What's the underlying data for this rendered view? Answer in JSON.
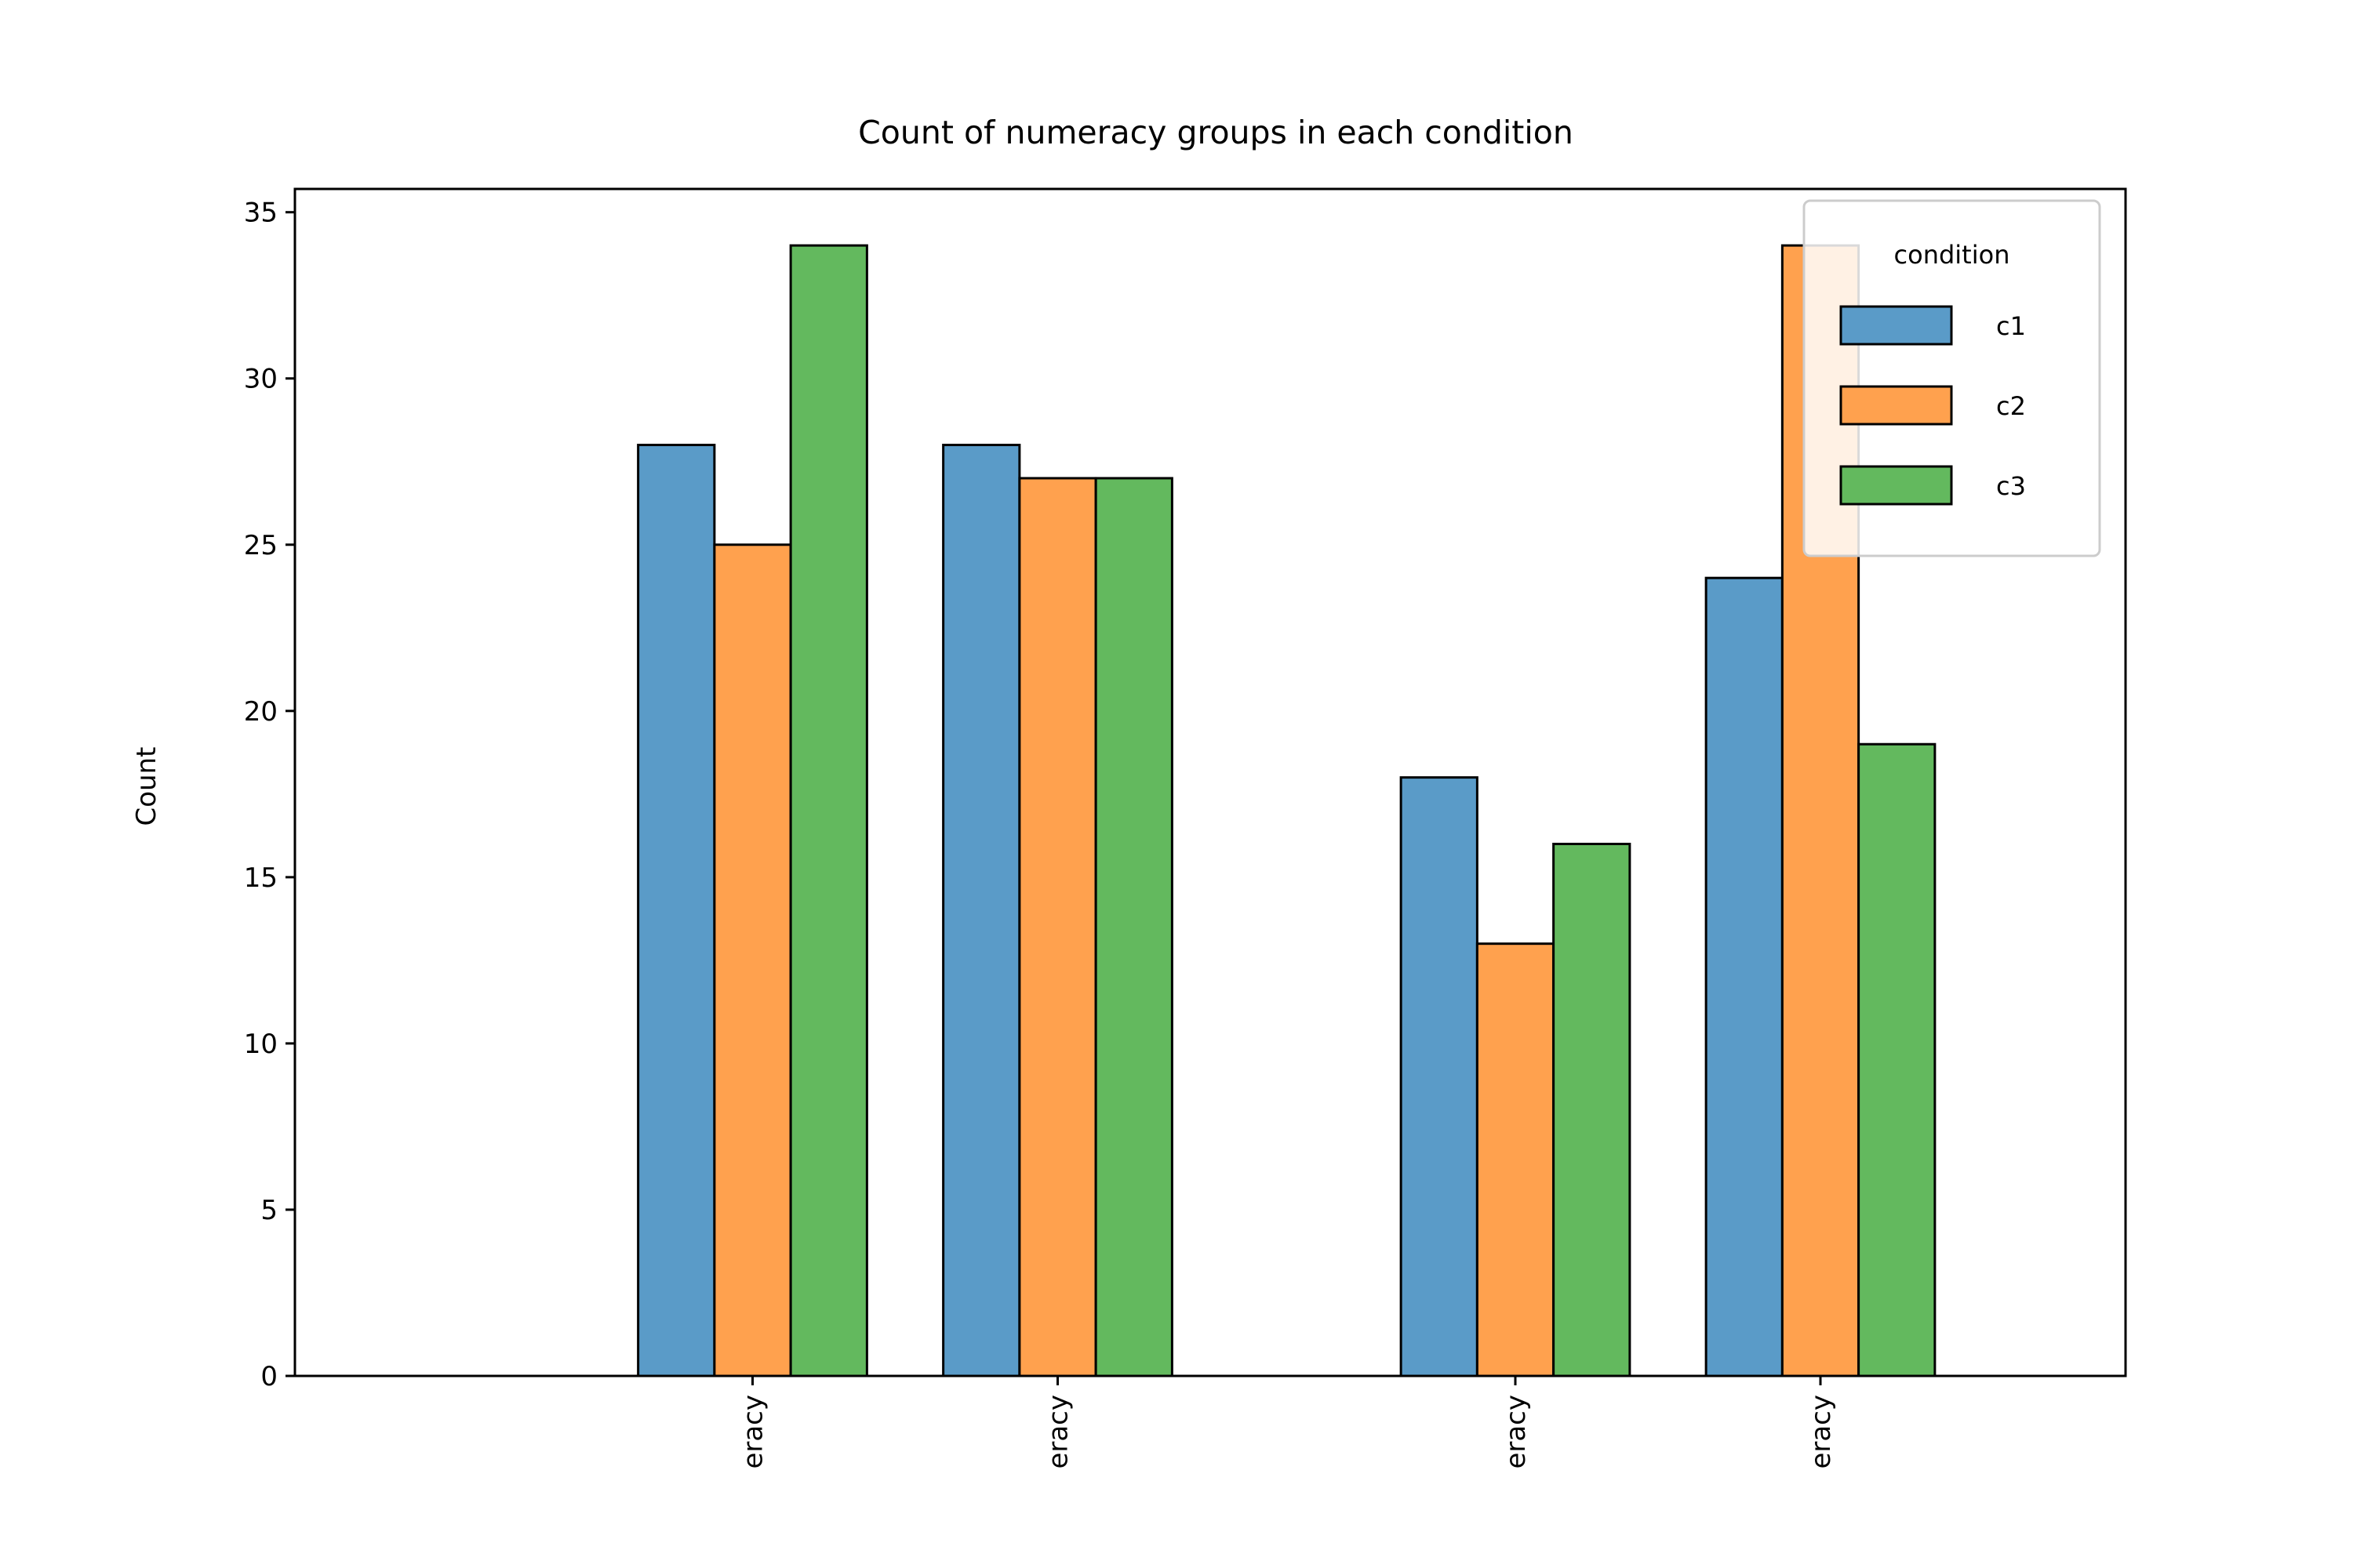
{
  "chart_data": {
    "type": "bar",
    "title": "Count of numeracy groups in each condition",
    "xlabel": "",
    "ylabel": "Count",
    "ylim": [
      0,
      35.7
    ],
    "yticks": [
      0,
      5,
      10,
      15,
      20,
      25,
      30,
      35
    ],
    "xlim": [
      0,
      6
    ],
    "x": [
      1.5,
      2.5,
      4.0,
      5.0
    ],
    "categories": [
      "eracy",
      "eracy",
      "eracy",
      "eracy"
    ],
    "series": [
      {
        "name": "c1",
        "color": "#5a9bc8",
        "values": [
          28,
          28,
          18,
          24
        ]
      },
      {
        "name": "c2",
        "color": "#ffa14e",
        "values": [
          25,
          27,
          13,
          34
        ]
      },
      {
        "name": "c3",
        "color": "#63b95e",
        "values": [
          34,
          27,
          16,
          19
        ]
      }
    ],
    "legend": {
      "title": "condition",
      "position": "top-right"
    },
    "grid": false
  }
}
